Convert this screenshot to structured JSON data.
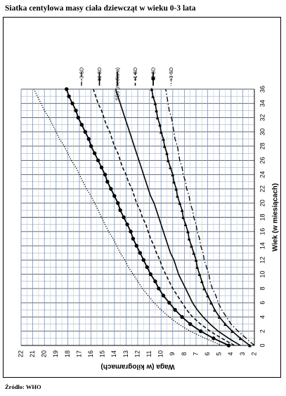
{
  "title": "Siatka centylowa masy ciała dziewcząt w wieku 0-3 lata",
  "source": "Źródło: WHO",
  "chart_data": {
    "type": "line",
    "orientation": "rotated-90",
    "xlabel": "Wiek (w miesiącach)",
    "ylabel": "Waga (w kilogramach)",
    "xlim": [
      0,
      36
    ],
    "ylim": [
      2,
      22
    ],
    "x_ticks": [
      0,
      2,
      4,
      6,
      8,
      10,
      12,
      14,
      16,
      18,
      20,
      22,
      24,
      26,
      28,
      30,
      32,
      34,
      36
    ],
    "y_ticks": [
      2,
      3,
      4,
      5,
      6,
      7,
      8,
      9,
      10,
      11,
      12,
      13,
      14,
      15,
      16,
      17,
      18,
      19,
      20,
      21,
      22
    ],
    "x": [
      0,
      1,
      2,
      3,
      4,
      5,
      6,
      7,
      8,
      9,
      10,
      11,
      12,
      13,
      14,
      15,
      16,
      17,
      18,
      19,
      20,
      21,
      22,
      23,
      24,
      25,
      26,
      27,
      28,
      29,
      30,
      31,
      32,
      33,
      34,
      35,
      36
    ],
    "grid": true,
    "legend_position": "top",
    "series": [
      {
        "name": "- 3 SD",
        "style": "dashdot",
        "values": [
          2.0,
          2.7,
          3.4,
          4.0,
          4.4,
          4.8,
          5.1,
          5.3,
          5.6,
          5.8,
          5.9,
          6.1,
          6.3,
          6.4,
          6.6,
          6.7,
          6.9,
          7.0,
          7.2,
          7.3,
          7.5,
          7.6,
          7.8,
          7.9,
          8.1,
          8.2,
          8.4,
          8.5,
          8.6,
          8.8,
          8.9,
          9.0,
          9.1,
          9.3,
          9.4,
          9.5,
          9.6
        ]
      },
      {
        "name": "- 2 SD",
        "style": "triangle-markers",
        "values": [
          2.4,
          3.2,
          3.9,
          4.5,
          5.0,
          5.4,
          5.7,
          6.0,
          6.3,
          6.5,
          6.7,
          6.9,
          7.0,
          7.2,
          7.4,
          7.6,
          7.7,
          7.9,
          8.1,
          8.2,
          8.4,
          8.6,
          8.7,
          8.9,
          9.0,
          9.2,
          9.4,
          9.5,
          9.7,
          9.8,
          10.0,
          10.1,
          10.3,
          10.4,
          10.5,
          10.7,
          10.8
        ]
      },
      {
        "name": "SD0 (mediana)",
        "style": "solid",
        "values": [
          3.2,
          4.2,
          5.1,
          5.8,
          6.4,
          6.9,
          7.3,
          7.6,
          7.9,
          8.2,
          8.5,
          8.7,
          8.9,
          9.2,
          9.4,
          9.6,
          9.8,
          10.0,
          10.2,
          10.4,
          10.6,
          10.9,
          11.1,
          11.3,
          11.5,
          11.7,
          11.9,
          12.1,
          12.3,
          12.5,
          12.7,
          12.9,
          13.1,
          13.3,
          13.5,
          13.7,
          13.9
        ]
      },
      {
        "name": "+1 SD",
        "style": "dashed",
        "values": [
          3.7,
          4.8,
          5.8,
          6.6,
          7.3,
          7.8,
          8.2,
          8.6,
          9.0,
          9.3,
          9.6,
          9.9,
          10.1,
          10.4,
          10.6,
          10.9,
          11.1,
          11.3,
          11.6,
          11.8,
          12.1,
          12.3,
          12.5,
          12.8,
          13.0,
          13.3,
          13.5,
          13.7,
          14.0,
          14.2,
          14.4,
          14.7,
          14.9,
          15.1,
          15.4,
          15.6,
          15.8
        ]
      },
      {
        "name": "+2 SD",
        "style": "circle-markers",
        "values": [
          4.2,
          5.5,
          6.6,
          7.5,
          8.2,
          8.8,
          9.3,
          9.8,
          10.2,
          10.5,
          10.9,
          11.2,
          11.5,
          11.8,
          12.1,
          12.4,
          12.6,
          12.9,
          13.2,
          13.5,
          13.7,
          14.0,
          14.3,
          14.6,
          14.8,
          15.1,
          15.4,
          15.7,
          16.0,
          16.2,
          16.5,
          16.8,
          17.1,
          17.3,
          17.6,
          17.9,
          18.1
        ]
      },
      {
        "name": "+3 SD",
        "style": "dotted",
        "values": [
          4.8,
          6.2,
          7.5,
          8.5,
          9.3,
          10.0,
          10.6,
          11.1,
          11.6,
          12.0,
          12.4,
          12.8,
          13.1,
          13.5,
          13.8,
          14.1,
          14.5,
          14.8,
          15.1,
          15.4,
          15.7,
          16.0,
          16.4,
          16.7,
          17.0,
          17.3,
          17.7,
          18.0,
          18.3,
          18.7,
          19.0,
          19.3,
          19.6,
          20.0,
          20.3,
          20.6,
          20.9
        ]
      }
    ]
  }
}
